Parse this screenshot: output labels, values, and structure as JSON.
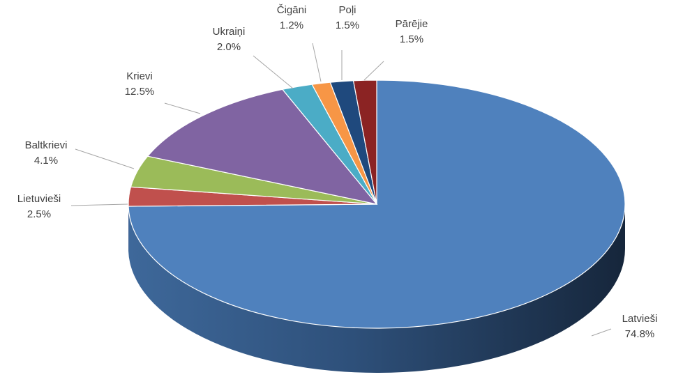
{
  "chart_data": {
    "type": "pie",
    "style": "3d",
    "title": "",
    "slices": [
      {
        "label": "Latvieši",
        "value": 74.8,
        "value_label": "74.8%",
        "color": "#4F81BD"
      },
      {
        "label": "Lietuvieši",
        "value": 2.5,
        "value_label": "2.5%",
        "color": "#C0504D"
      },
      {
        "label": "Baltkrievi",
        "value": 4.1,
        "value_label": "4.1%",
        "color": "#9BBB59"
      },
      {
        "label": "Krievi",
        "value": 12.5,
        "value_label": "12.5%",
        "color": "#8064A2"
      },
      {
        "label": "Ukraiņi",
        "value": 2.0,
        "value_label": "2.0%",
        "color": "#4BACC6"
      },
      {
        "label": "Čigāni",
        "value": 1.2,
        "value_label": "1.2%",
        "color": "#F79646"
      },
      {
        "label": "Poļi",
        "value": 1.5,
        "value_label": "1.5%",
        "color": "#1F497D"
      },
      {
        "label": "Pārējie",
        "value": 1.5,
        "value_label": "1.5%",
        "color": "#8B2323"
      }
    ]
  }
}
